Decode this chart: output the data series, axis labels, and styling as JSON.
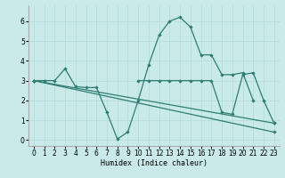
{
  "xlabel": "Humidex (Indice chaleur)",
  "bg_color": "#caeaea",
  "line_color": "#2e7d72",
  "grid_color": "#b8dede",
  "xlim": [
    -0.5,
    23.5
  ],
  "ylim": [
    -0.3,
    6.8
  ],
  "xticks": [
    0,
    1,
    2,
    3,
    4,
    5,
    6,
    7,
    8,
    9,
    10,
    11,
    12,
    13,
    14,
    15,
    16,
    17,
    18,
    19,
    20,
    21,
    22,
    23
  ],
  "yticks": [
    0,
    1,
    2,
    3,
    4,
    5,
    6
  ],
  "lines": [
    {
      "x": [
        0,
        23
      ],
      "y": [
        3.0,
        0.85
      ]
    },
    {
      "x": [
        0,
        23
      ],
      "y": [
        3.0,
        0.4
      ]
    },
    {
      "x": [
        0,
        1,
        2,
        3,
        4,
        5,
        6,
        7,
        8,
        9,
        10,
        11,
        12,
        13,
        14,
        15,
        16,
        17,
        18,
        19,
        20,
        21,
        22
      ],
      "y": [
        3.0,
        3.0,
        3.0,
        3.6,
        2.7,
        2.65,
        2.65,
        1.4,
        0.05,
        0.4,
        2.0,
        3.8,
        5.3,
        6.0,
        6.2,
        5.7,
        4.3,
        4.3,
        3.3,
        3.3,
        3.4,
        2.0,
        null
      ]
    },
    {
      "x": [
        10,
        11,
        12,
        13,
        14,
        15,
        16,
        17,
        18,
        19,
        20,
        21,
        22,
        23
      ],
      "y": [
        3.0,
        3.0,
        3.0,
        3.0,
        3.0,
        3.0,
        3.0,
        3.0,
        1.4,
        1.3,
        3.3,
        3.4,
        2.0,
        0.85
      ]
    }
  ]
}
